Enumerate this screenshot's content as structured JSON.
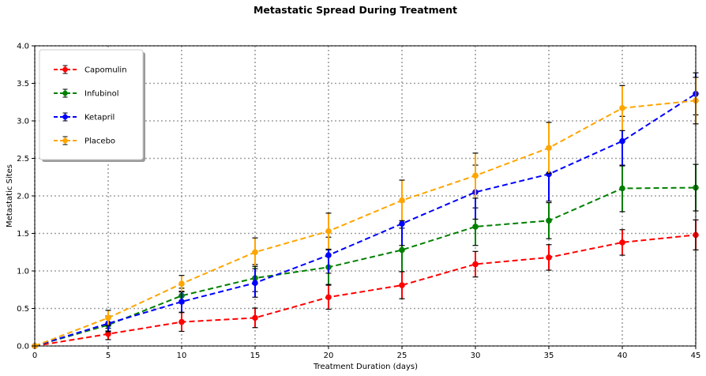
{
  "chart_data": {
    "type": "line",
    "title": "Metastatic Spread During Treatment",
    "xlabel": "Treatment Duration (days)",
    "ylabel": "Metastatic Sites",
    "xlim": [
      0,
      45
    ],
    "ylim": [
      0,
      4.0
    ],
    "x_ticks": [
      "0",
      "5",
      "10",
      "15",
      "20",
      "25",
      "30",
      "35",
      "40",
      "45"
    ],
    "y_ticks": [
      "0.0",
      "0.5",
      "1.0",
      "1.5",
      "2.0",
      "2.5",
      "3.0",
      "3.5",
      "4.0"
    ],
    "grid": true,
    "legend_position": "top-left",
    "x": [
      0,
      5,
      10,
      15,
      20,
      25,
      30,
      35,
      40,
      45
    ],
    "series": [
      {
        "name": "Capomulin",
        "color": "#ff0000",
        "marker": "circle",
        "values": [
          0.0,
          0.16,
          0.32,
          0.375,
          0.65,
          0.81,
          1.09,
          1.18,
          1.38,
          1.48
        ],
        "errors": [
          0.0,
          0.075,
          0.125,
          0.13,
          0.16,
          0.18,
          0.17,
          0.17,
          0.17,
          0.2
        ]
      },
      {
        "name": "Infubinol",
        "color": "#008000",
        "marker": "circle",
        "values": [
          0.0,
          0.28,
          0.67,
          0.905,
          1.05,
          1.28,
          1.59,
          1.67,
          2.1,
          2.11
        ],
        "errors": [
          0.0,
          0.09,
          0.1,
          0.18,
          0.23,
          0.29,
          0.25,
          0.24,
          0.31,
          0.31
        ]
      },
      {
        "name": "Ketapril",
        "color": "#0000ff",
        "marker": "circle",
        "values": [
          0.0,
          0.3,
          0.59,
          0.84,
          1.21,
          1.63,
          2.05,
          2.29,
          2.73,
          3.36
        ],
        "errors": [
          0.0,
          0.1,
          0.14,
          0.19,
          0.24,
          0.29,
          0.36,
          0.36,
          0.33,
          0.28
        ]
      },
      {
        "name": "Placebo",
        "color": "#ffa500",
        "marker": "circle",
        "values": [
          0.0,
          0.375,
          0.83,
          1.25,
          1.53,
          1.94,
          2.27,
          2.64,
          3.17,
          3.27
        ],
        "errors": [
          0.0,
          0.1,
          0.11,
          0.19,
          0.24,
          0.27,
          0.3,
          0.34,
          0.3,
          0.31
        ]
      }
    ]
  }
}
